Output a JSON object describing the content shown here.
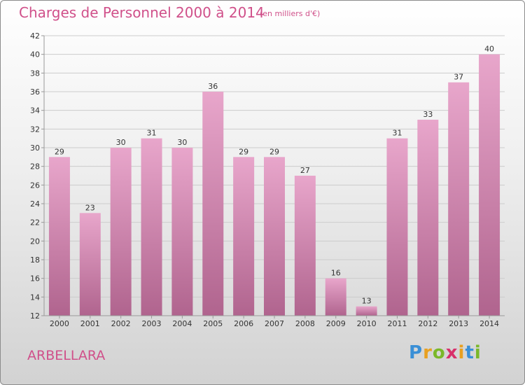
{
  "title": "Charges de Personnel 2000 à 2014",
  "subtitle": "(en milliers d'€)",
  "commune": "ARBELLARA",
  "logo": {
    "text": "Proxiti",
    "letters": [
      {
        "ch": "P",
        "color": "#3a8fd6"
      },
      {
        "ch": "r",
        "color": "#e8a020"
      },
      {
        "ch": "o",
        "color": "#7ab829"
      },
      {
        "ch": "x",
        "color": "#d8306a"
      },
      {
        "ch": "i",
        "color": "#e8a020"
      },
      {
        "ch": "t",
        "color": "#3a8fd6"
      },
      {
        "ch": "i",
        "color": "#7ab829"
      }
    ]
  },
  "chart_data": {
    "type": "bar",
    "categories": [
      "2000",
      "2001",
      "2002",
      "2003",
      "2004",
      "2005",
      "2006",
      "2007",
      "2008",
      "2009",
      "2010",
      "2011",
      "2012",
      "2013",
      "2014"
    ],
    "values": [
      29,
      23,
      30,
      31,
      30,
      36,
      29,
      29,
      27,
      16,
      13,
      31,
      33,
      37,
      40
    ],
    "data_labels": [
      "29",
      "23",
      "30",
      "31",
      "30",
      "36",
      "29",
      "29",
      "27",
      "16",
      "13",
      "31",
      "33",
      "37",
      "40"
    ],
    "ylim": [
      12,
      42
    ],
    "yticks": [
      "12",
      "14",
      "16",
      "18",
      "20",
      "22",
      "24",
      "26",
      "28",
      "30",
      "32",
      "34",
      "36",
      "38",
      "40",
      "42"
    ],
    "grid": true,
    "colors": {
      "bar_top": "#e8a6cb",
      "bar_bottom": "#b0648e",
      "grid": "#cccccc",
      "text": "#333333",
      "title": "#d0508a"
    }
  }
}
